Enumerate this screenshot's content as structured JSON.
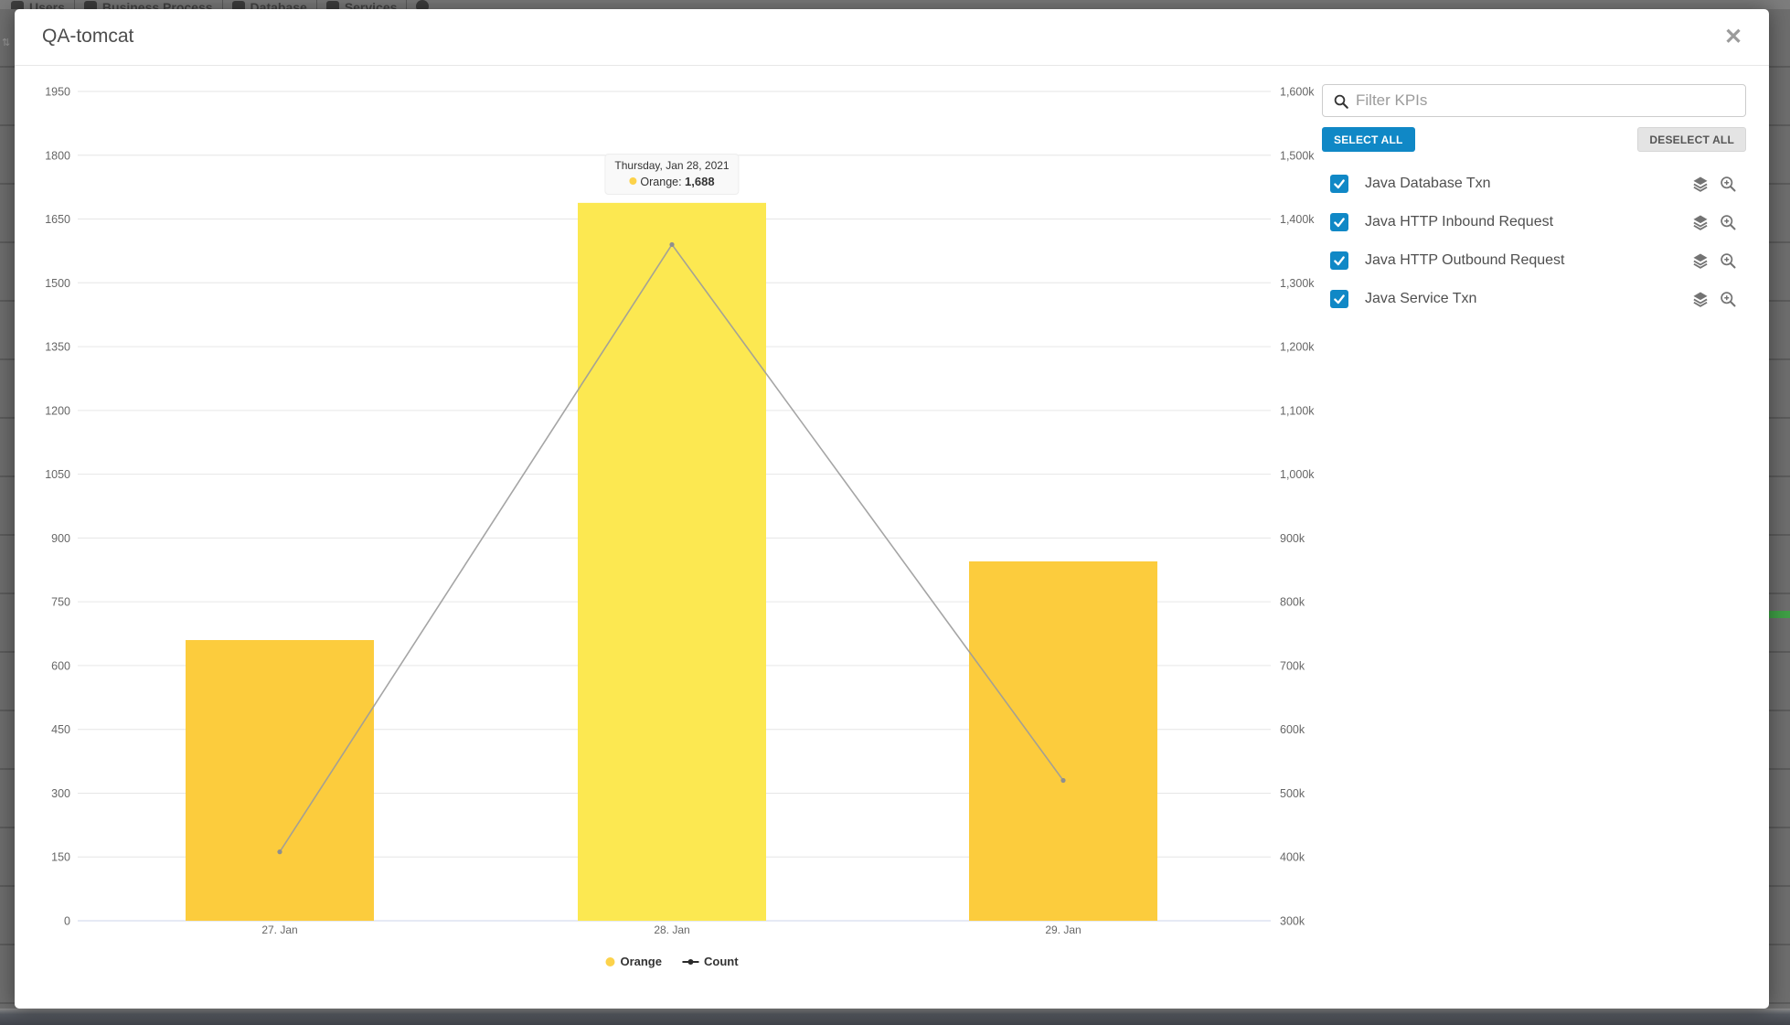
{
  "backdrop": {
    "toolbar_tabs": [
      {
        "icon": "users-icon",
        "label": "Users"
      },
      {
        "icon": "briefcase-icon",
        "label": "Business Process"
      },
      {
        "icon": "database-icon",
        "label": "Database"
      },
      {
        "icon": "gear-icon",
        "label": "Services"
      },
      {
        "icon": "play-circle-icon",
        "label": ""
      }
    ],
    "status_green": "#3fa046"
  },
  "modal": {
    "title": "QA-tomcat",
    "close_glyph": "✕"
  },
  "chart_data": {
    "type": "bar+line",
    "categories": [
      "27. Jan",
      "28. Jan",
      "29. Jan"
    ],
    "series": [
      {
        "name": "Orange",
        "type": "bar",
        "axis": "left",
        "values": [
          660,
          1688,
          845
        ],
        "color": "#FCCC3D",
        "hover_color": "#FCE851",
        "hover_index": 1
      },
      {
        "name": "Count",
        "type": "line",
        "axis": "right",
        "values": [
          408000,
          1360000,
          520000
        ],
        "color": "#9b9b9b"
      }
    ],
    "left_axis": {
      "min": 0,
      "max": 1950,
      "step": 150,
      "labels": [
        "1950",
        "1800",
        "1650",
        "1500",
        "1350",
        "1200",
        "1050",
        "900",
        "750",
        "600",
        "450",
        "300",
        "150",
        "0"
      ]
    },
    "right_axis": {
      "min": 300000,
      "max": 1600000,
      "step": 100000,
      "labels": [
        "1,600k",
        "1,500k",
        "1,400k",
        "1,300k",
        "1,200k",
        "1,100k",
        "1,000k",
        "900k",
        "800k",
        "700k",
        "600k",
        "500k",
        "400k",
        "300k"
      ]
    },
    "grid": true,
    "legend_position": "bottom",
    "tooltip": {
      "date": "Thursday, Jan 28, 2021",
      "series_label": "Orange:",
      "value": "1,688"
    }
  },
  "kpi_panel": {
    "filter_placeholder": "Filter KPIs",
    "select_all_label": "SELECT ALL",
    "deselect_all_label": "DESELECT ALL",
    "items": [
      {
        "label": "Java Database Txn",
        "checked": true
      },
      {
        "label": "Java HTTP Inbound Request",
        "checked": true
      },
      {
        "label": "Java HTTP Outbound Request",
        "checked": true
      },
      {
        "label": "Java Service Txn",
        "checked": true
      }
    ]
  }
}
